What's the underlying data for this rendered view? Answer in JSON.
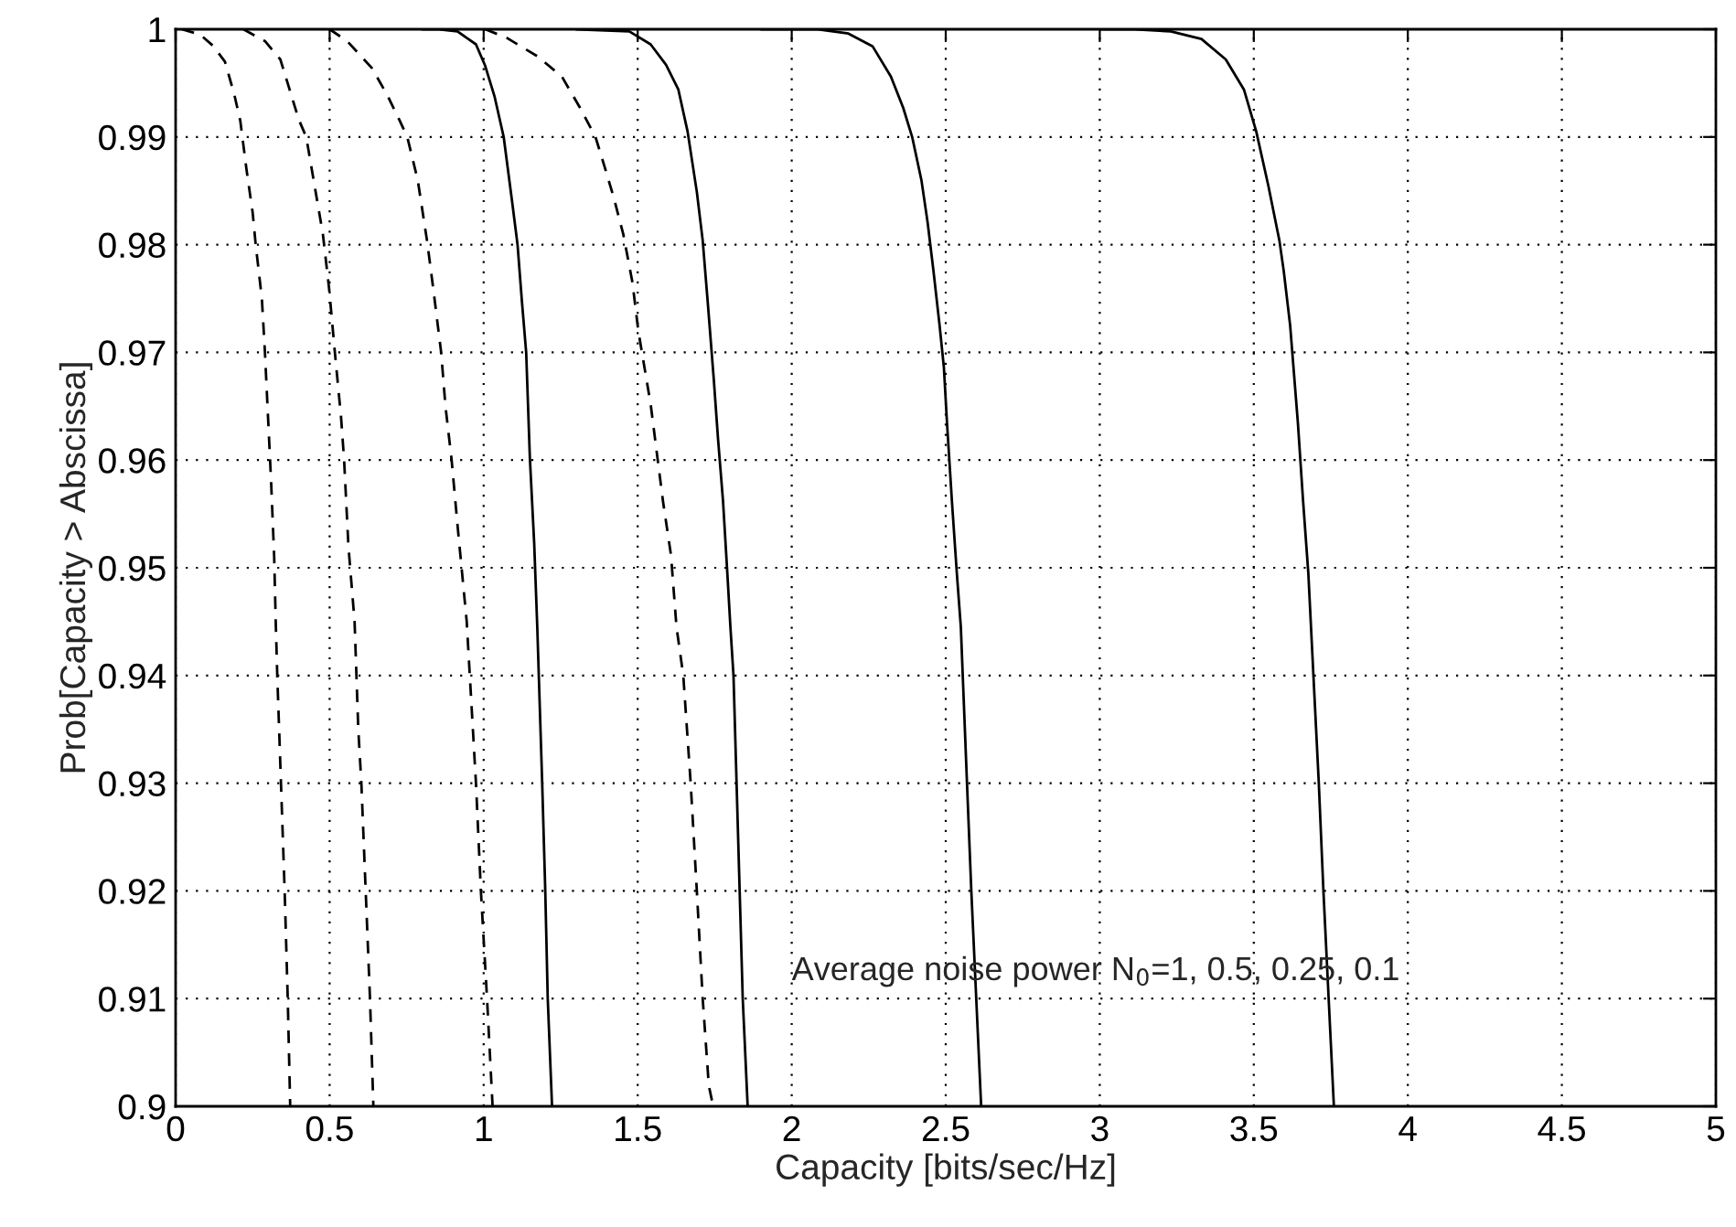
{
  "chart_data": {
    "type": "line",
    "xlabel": "Capacity [bits/sec/Hz]",
    "ylabel": "Prob[Capacity > Abscissa]",
    "annotations": [
      "Average noise power N$_{0}$=1, 0.5, 0.25, 0.1"
    ],
    "xlim": [
      0,
      5
    ],
    "ylim": [
      0.9,
      1
    ],
    "xticks": [
      0,
      0.5,
      1,
      1.5,
      2,
      2.5,
      3,
      3.5,
      4,
      4.5,
      5
    ],
    "yticks": [
      0.9,
      0.91,
      0.92,
      0.93,
      0.94,
      0.95,
      0.96,
      0.97,
      0.98,
      0.99,
      1
    ],
    "grid": true,
    "legend": false,
    "marker": "none",
    "series": [
      {
        "color": "#000000",
        "line_style": "dashed",
        "x": [
          0.02,
          0.08,
          0.12,
          0.16,
          0.19,
          0.21,
          0.23,
          0.25,
          0.26,
          0.28,
          0.29,
          0.3,
          0.31,
          0.32,
          0.325,
          0.33,
          0.342,
          0.354,
          0.364,
          0.372
        ],
        "values": [
          1.0,
          0.9995,
          0.9985,
          0.997,
          0.994,
          0.9915,
          0.987,
          0.983,
          0.98,
          0.975,
          0.97,
          0.964,
          0.958,
          0.951,
          0.945,
          0.94,
          0.93,
          0.92,
          0.91,
          0.9
        ]
      },
      {
        "color": "#000000",
        "line_style": "dashed",
        "x": [
          0.22,
          0.29,
          0.34,
          0.37,
          0.4,
          0.424,
          0.448,
          0.478,
          0.498,
          0.517,
          0.537,
          0.547,
          0.561,
          0.581,
          0.593,
          0.603,
          0.617,
          0.631,
          0.642
        ],
        "values": [
          1.0,
          0.9989,
          0.9972,
          0.9944,
          0.9916,
          0.99,
          0.986,
          0.981,
          0.976,
          0.97,
          0.964,
          0.96,
          0.952,
          0.945,
          0.935,
          0.93,
          0.92,
          0.91,
          0.9
        ]
      },
      {
        "color": "#000000",
        "line_style": "dashed",
        "x": [
          0.5,
          0.557,
          0.637,
          0.687,
          0.726,
          0.752,
          0.786,
          0.816,
          0.836,
          0.862,
          0.876,
          0.896,
          0.915,
          0.945,
          0.965,
          0.975,
          0.991,
          1.011,
          1.029
        ],
        "values": [
          1.0,
          0.9989,
          0.9964,
          0.9939,
          0.9916,
          0.99,
          0.986,
          0.9804,
          0.976,
          0.97,
          0.965,
          0.96,
          0.954,
          0.945,
          0.935,
          0.93,
          0.92,
          0.91,
          0.9
        ]
      },
      {
        "color": "#000000",
        "line_style": "solid",
        "x": [
          0.8,
          0.855,
          0.915,
          0.975,
          1.005,
          1.035,
          1.065,
          1.091,
          1.11,
          1.124,
          1.138,
          1.15,
          1.164,
          1.174,
          1.19,
          1.2,
          1.208,
          1.222
        ],
        "values": [
          1.0,
          1.0,
          0.9998,
          0.9986,
          0.9966,
          0.9938,
          0.99,
          0.9843,
          0.98,
          0.9748,
          0.97,
          0.9602,
          0.9523,
          0.9445,
          0.93,
          0.92,
          0.91,
          0.9
        ]
      },
      {
        "color": "#000000",
        "line_style": "dashed",
        "x": [
          1.005,
          1.075,
          1.174,
          1.254,
          1.313,
          1.363,
          1.393,
          1.423,
          1.453,
          1.483,
          1.502,
          1.522,
          1.542,
          1.562,
          1.582,
          1.608,
          1.626,
          1.648,
          1.672,
          1.692,
          1.711,
          1.731,
          1.745
        ],
        "values": [
          1.0,
          0.9992,
          0.9975,
          0.9956,
          0.9927,
          0.99,
          0.9872,
          0.9843,
          0.981,
          0.9765,
          0.972,
          0.9686,
          0.9652,
          0.9607,
          0.9562,
          0.9512,
          0.9445,
          0.94,
          0.93,
          0.92,
          0.91,
          0.9019,
          0.9
        ]
      },
      {
        "color": "#000000",
        "line_style": "solid",
        "x": [
          1.3,
          1.473,
          1.542,
          1.592,
          1.632,
          1.662,
          1.692,
          1.711,
          1.727,
          1.747,
          1.761,
          1.777,
          1.791,
          1.801,
          1.811,
          1.821,
          1.831,
          1.841,
          1.857
        ],
        "values": [
          1.0,
          0.9998,
          0.9986,
          0.9967,
          0.9944,
          0.9905,
          0.9849,
          0.9804,
          0.9748,
          0.9675,
          0.9619,
          0.9562,
          0.9495,
          0.9445,
          0.94,
          0.93,
          0.92,
          0.91,
          0.9
        ]
      },
      {
        "color": "#000000",
        "line_style": "solid",
        "x": [
          1.9,
          2.085,
          2.184,
          2.263,
          2.322,
          2.362,
          2.391,
          2.421,
          2.441,
          2.46,
          2.48,
          2.494,
          2.504,
          2.52,
          2.536,
          2.549,
          2.569,
          2.583,
          2.599,
          2.615
        ],
        "values": [
          1.0,
          1.0,
          0.9996,
          0.9984,
          0.9956,
          0.9927,
          0.99,
          0.986,
          0.9821,
          0.9776,
          0.9725,
          0.9686,
          0.9635,
          0.9562,
          0.9495,
          0.9445,
          0.93,
          0.92,
          0.91,
          0.9
        ]
      },
      {
        "color": "#000000",
        "line_style": "solid",
        "x": [
          3.0,
          3.113,
          3.231,
          3.33,
          3.409,
          3.468,
          3.508,
          3.547,
          3.583,
          3.597,
          3.618,
          3.643,
          3.66,
          3.677,
          3.711,
          3.726,
          3.743,
          3.76
        ],
        "values": [
          1.0,
          1.0,
          0.9998,
          0.9991,
          0.9972,
          0.9944,
          0.9905,
          0.9855,
          0.9804,
          0.9776,
          0.9725,
          0.9635,
          0.9562,
          0.9495,
          0.93,
          0.92,
          0.91,
          0.9
        ]
      }
    ]
  }
}
